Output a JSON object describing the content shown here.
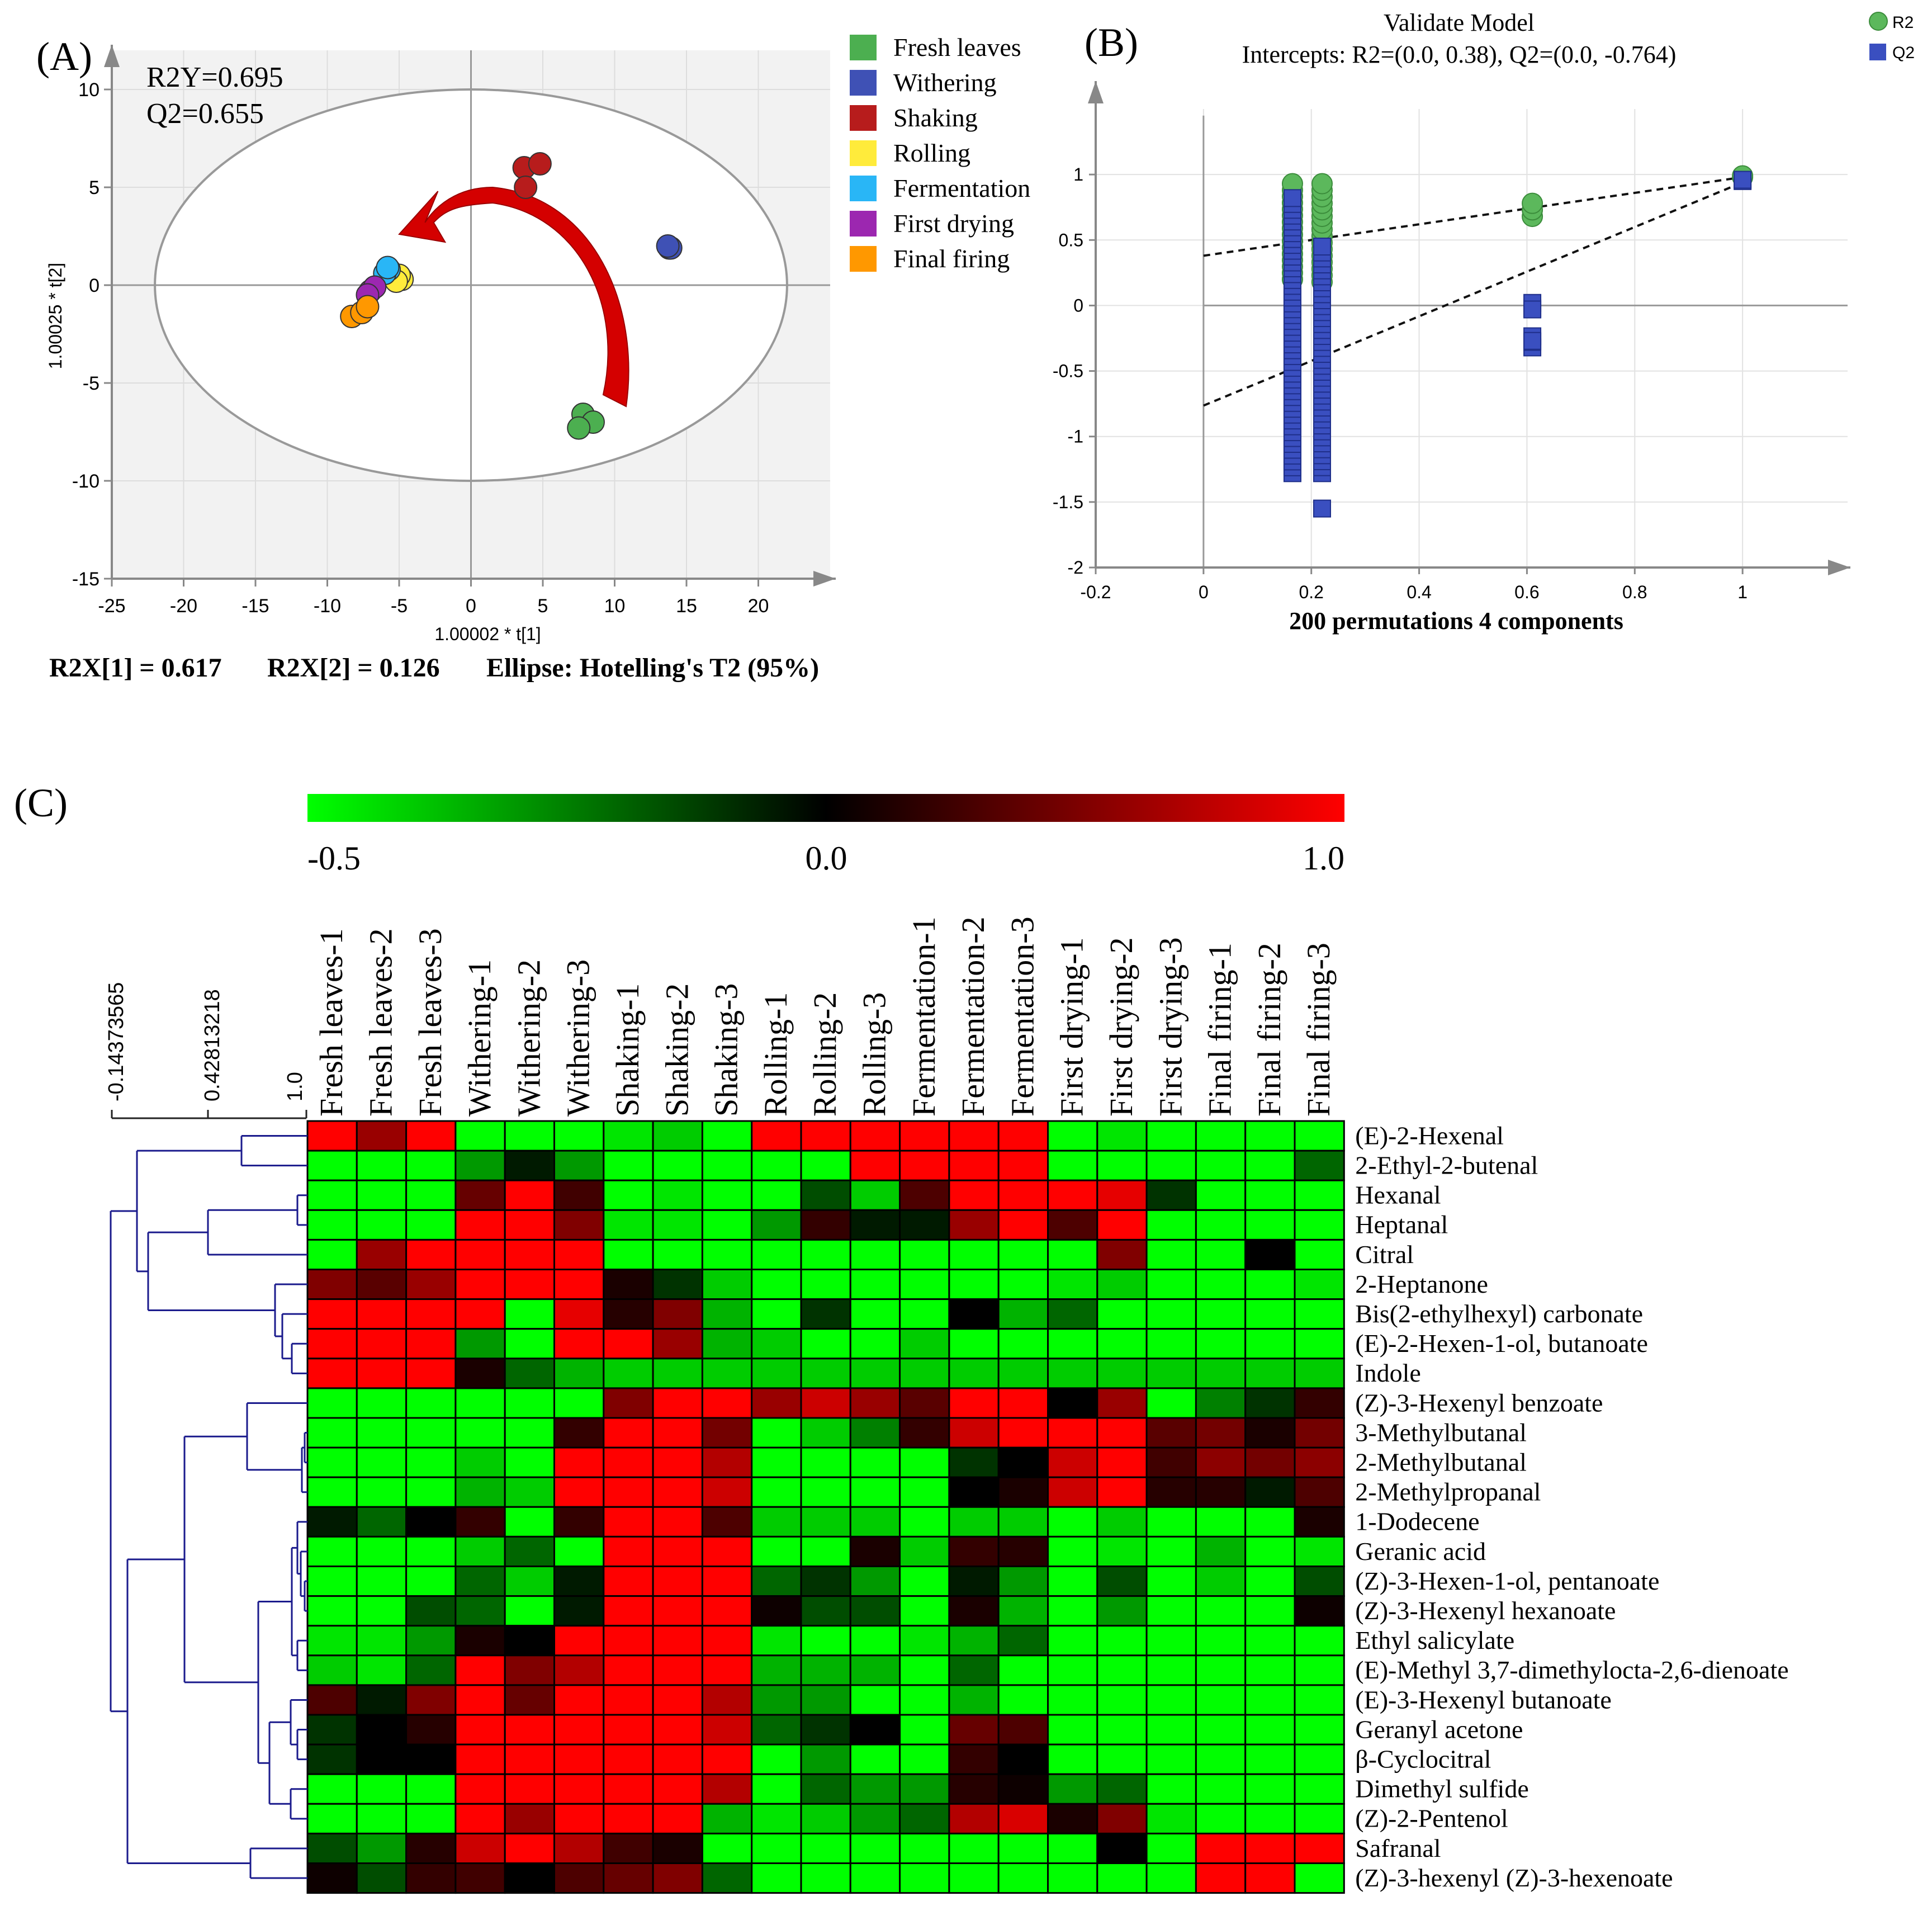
{
  "panel_labels": {
    "a": "(A)",
    "b": "(B)",
    "c": "(C)"
  },
  "colors": {
    "fresh": "#4caf50",
    "withering": "#3f51b5",
    "shaking": "#b71c1c",
    "rolling": "#ffeb3b",
    "fermentation": "#29b6f6",
    "firstdrying": "#9c27b0",
    "finalfiring": "#ff9800",
    "r2": "#5cb85c",
    "q2": "#3a4fc0",
    "arrow": "#d40000",
    "dendro": "#1a1a8c"
  },
  "chart_data": [
    {
      "id": "A",
      "type": "scatter",
      "xlabel": "1.00002 * t[1]",
      "ylabel": "1.00025 * t[2]",
      "xlim": [
        -25,
        25
      ],
      "ylim": [
        -15,
        12
      ],
      "xticks": [
        "-25",
        "-20",
        "-15",
        "-10",
        "-5",
        "0",
        "5",
        "10",
        "15",
        "20"
      ],
      "yticks": [
        "10",
        "5",
        "0",
        "-5",
        "-10",
        "-15"
      ],
      "stats": [
        "R2Y=0.695",
        "Q2=0.655"
      ],
      "footer": [
        "R2X[1] = 0.617",
        "R2X[2] = 0.126",
        "Ellipse: Hotelling's T2 (95%)"
      ],
      "ellipse": {
        "cx": 0,
        "cy": 0,
        "rx": 22,
        "ry": 10
      },
      "series": [
        {
          "name": "Fresh leaves",
          "color": "#4caf50",
          "points": [
            [
              7.8,
              -6.6
            ],
            [
              8.5,
              -7.0
            ],
            [
              7.5,
              -7.3
            ]
          ]
        },
        {
          "name": "Withering",
          "color": "#3f51b5",
          "points": [
            [
              13.8,
              1.9
            ],
            [
              13.9,
              1.9
            ],
            [
              13.7,
              2.0
            ]
          ]
        },
        {
          "name": "Shaking",
          "color": "#b71c1c",
          "points": [
            [
              3.7,
              6.0
            ],
            [
              4.8,
              6.2
            ],
            [
              3.8,
              5.0
            ]
          ]
        },
        {
          "name": "Rolling",
          "color": "#ffeb3b",
          "points": [
            [
              -4.8,
              0.3
            ],
            [
              -5.0,
              0.5
            ],
            [
              -5.2,
              0.2
            ]
          ]
        },
        {
          "name": "Fermentation",
          "color": "#29b6f6",
          "points": [
            [
              -5.7,
              0.8
            ],
            [
              -6.0,
              0.6
            ],
            [
              -5.8,
              0.9
            ]
          ]
        },
        {
          "name": "First drying",
          "color": "#9c27b0",
          "points": [
            [
              -7.0,
              -0.3
            ],
            [
              -6.7,
              -0.1
            ],
            [
              -7.2,
              -0.5
            ]
          ]
        },
        {
          "name": "Final firing",
          "color": "#ff9800",
          "points": [
            [
              -8.3,
              -1.6
            ],
            [
              -7.6,
              -1.4
            ],
            [
              -7.2,
              -1.1
            ]
          ]
        }
      ]
    },
    {
      "id": "B",
      "type": "scatter",
      "title": "Validate Model",
      "subtitle": "Intercepts: R2=(0.0, 0.38), Q2=(0.0, -0.764)",
      "xlabel": "200 permutations 4 components",
      "xlim": [
        -0.2,
        1.2
      ],
      "ylim": [
        -2,
        1.5
      ],
      "xticks": [
        "-0.2",
        "0",
        "0.2",
        "0.4",
        "0.6",
        "0.8",
        "1"
      ],
      "yticks": [
        "1",
        "0.5",
        "0",
        "-0.5",
        "-1",
        "-1.5",
        "-2"
      ],
      "legend": [
        "R2",
        "Q2"
      ],
      "r2_line": [
        [
          0,
          0.38
        ],
        [
          1,
          0.98
        ]
      ],
      "q2_line": [
        [
          0,
          -0.764
        ],
        [
          1,
          0.94
        ]
      ],
      "series": [
        {
          "name": "R2",
          "x": [
            0.165,
            0.22,
            0.61,
            1.0
          ],
          "ranges": [
            [
              0.2,
              0.93
            ],
            [
              0.18,
              0.93
            ],
            [
              0.68,
              0.78
            ],
            [
              0.98,
              0.99
            ]
          ]
        },
        {
          "name": "Q2",
          "x": [
            0.165,
            0.22,
            0.61,
            1.0
          ],
          "ranges": [
            [
              -1.28,
              0.82
            ],
            [
              -1.28,
              0.45
            ],
            [
              -0.32,
              0.02
            ],
            [
              0.95,
              0.96
            ]
          ],
          "outliers": [
            [
              0.22,
              -1.55
            ],
            [
              0.61,
              -0.27
            ],
            [
              0.61,
              -0.03
            ]
          ]
        }
      ]
    },
    {
      "id": "C",
      "type": "heatmap",
      "colorbar": {
        "min": -0.5,
        "mid": 0.0,
        "max": 1.0,
        "labels": [
          "-0.5",
          "0.0",
          "1.0"
        ]
      },
      "dendro_scale": [
        "-0.14373565",
        "0.42813218",
        "1.0"
      ],
      "columns": [
        "Fresh leaves-1",
        "Fresh leaves-2",
        "Fresh leaves-3",
        "Withering-1",
        "Withering-2",
        "Withering-3",
        "Shaking-1",
        "Shaking-2",
        "Shaking-3",
        "Rolling-1",
        "Rolling-2",
        "Rolling-3",
        "Fermentation-1",
        "Fermentation-2",
        "Fermentation-3",
        "First drying-1",
        "First drying-2",
        "First drying-3",
        "Final firing-1",
        "Final firing-2",
        "Final firing-3"
      ],
      "rows": [
        "(E)-2-Hexenal",
        "2-Ethyl-2-butenal",
        "Hexanal",
        "Heptanal",
        "Citral",
        "2-Heptanone",
        "Bis(2-ethylhexyl) carbonate",
        "(E)-2-Hexen-1-ol, butanoate",
        "Indole",
        "(Z)-3-Hexenyl benzoate",
        "3-Methylbutanal",
        "2-Methylbutanal",
        "2-Methylpropanal",
        "1-Dodecene",
        "Geranic acid",
        "(Z)-3-Hexen-1-ol, pentanoate",
        "(Z)-3-Hexenyl hexanoate",
        "Ethyl salicylate",
        "(E)-Methyl 3,7-dimethylocta-2,6-dienoate",
        "(E)-3-Hexenyl butanoate",
        "Geranyl acetone",
        "β-Cyclocitral",
        "Dimethyl sulfide",
        "(Z)-2-Pentenol",
        "Safranal",
        "(Z)-3-hexenyl (Z)-3-hexenoate"
      ],
      "values": [
        [
          1.0,
          0.6,
          1.0,
          -0.5,
          -0.5,
          -0.5,
          -0.45,
          -0.4,
          -0.5,
          1.0,
          1.0,
          1.0,
          1.0,
          1.0,
          1.0,
          -0.5,
          -0.45,
          -0.5,
          -0.5,
          -0.5,
          -0.5
        ],
        [
          -0.5,
          -0.5,
          -0.5,
          -0.3,
          -0.05,
          -0.3,
          -0.5,
          -0.5,
          -0.5,
          -0.5,
          -0.5,
          1.0,
          1.0,
          1.0,
          1.0,
          -0.5,
          -0.5,
          -0.5,
          -0.5,
          -0.5,
          -0.2
        ],
        [
          -0.5,
          -0.5,
          -0.5,
          0.4,
          1.0,
          0.25,
          -0.5,
          -0.45,
          -0.5,
          -0.5,
          -0.15,
          -0.4,
          0.3,
          1.0,
          1.0,
          1.0,
          0.9,
          -0.1,
          -0.5,
          -0.5,
          -0.5
        ],
        [
          -0.5,
          -0.5,
          -0.5,
          1.0,
          1.0,
          0.5,
          -0.45,
          -0.45,
          -0.5,
          -0.3,
          0.2,
          -0.05,
          -0.05,
          0.6,
          1.0,
          0.3,
          1.0,
          -0.5,
          -0.5,
          -0.5,
          -0.5
        ],
        [
          -0.5,
          0.6,
          1.0,
          1.0,
          1.0,
          1.0,
          -0.5,
          -0.5,
          -0.5,
          -0.5,
          -0.5,
          -0.5,
          -0.5,
          -0.5,
          -0.5,
          -0.5,
          0.5,
          -0.5,
          -0.5,
          0.0,
          -0.5
        ],
        [
          0.5,
          0.35,
          0.6,
          1.0,
          1.0,
          1.0,
          0.1,
          -0.1,
          -0.4,
          -0.5,
          -0.5,
          -0.5,
          -0.5,
          -0.5,
          -0.5,
          -0.45,
          -0.4,
          -0.5,
          -0.5,
          -0.5,
          -0.45
        ],
        [
          1.0,
          1.0,
          1.0,
          1.0,
          -0.5,
          0.9,
          0.15,
          0.5,
          -0.35,
          -0.5,
          -0.1,
          -0.5,
          -0.5,
          0.0,
          -0.35,
          -0.2,
          -0.5,
          -0.5,
          -0.5,
          -0.5,
          -0.5
        ],
        [
          1.0,
          1.0,
          1.0,
          -0.3,
          -0.5,
          1.0,
          1.0,
          0.6,
          -0.35,
          -0.4,
          -0.5,
          -0.5,
          -0.4,
          -0.5,
          -0.5,
          -0.5,
          -0.5,
          -0.5,
          -0.5,
          -0.5,
          -0.5
        ],
        [
          1.0,
          1.0,
          1.0,
          0.1,
          -0.2,
          -0.35,
          -0.4,
          -0.4,
          -0.4,
          -0.4,
          -0.4,
          -0.4,
          -0.4,
          -0.4,
          -0.4,
          -0.4,
          -0.4,
          -0.4,
          -0.4,
          -0.4,
          -0.4
        ],
        [
          -0.5,
          -0.5,
          -0.5,
          -0.5,
          -0.5,
          -0.5,
          0.5,
          1.0,
          1.0,
          0.6,
          0.8,
          0.6,
          0.35,
          1.0,
          1.0,
          0.0,
          0.6,
          -0.5,
          -0.25,
          -0.1,
          0.2
        ],
        [
          -0.5,
          -0.5,
          -0.5,
          -0.5,
          -0.5,
          0.2,
          1.0,
          1.0,
          0.45,
          -0.5,
          -0.4,
          -0.25,
          0.2,
          0.8,
          1.0,
          1.0,
          1.0,
          0.35,
          0.45,
          0.1,
          0.45
        ],
        [
          -0.5,
          -0.5,
          -0.5,
          -0.4,
          -0.5,
          1.0,
          1.0,
          1.0,
          0.7,
          -0.5,
          -0.5,
          -0.5,
          -0.5,
          -0.1,
          0.0,
          0.8,
          1.0,
          0.25,
          0.55,
          0.45,
          0.55
        ],
        [
          -0.5,
          -0.5,
          -0.5,
          -0.35,
          -0.4,
          1.0,
          1.0,
          1.0,
          0.8,
          -0.5,
          -0.5,
          -0.5,
          -0.5,
          0.0,
          0.1,
          0.8,
          1.0,
          0.15,
          0.15,
          -0.05,
          0.3
        ],
        [
          -0.05,
          -0.2,
          0.0,
          0.2,
          -0.5,
          0.2,
          1.0,
          1.0,
          0.3,
          -0.4,
          -0.4,
          -0.4,
          -0.5,
          -0.4,
          -0.4,
          -0.5,
          -0.4,
          -0.5,
          -0.5,
          -0.5,
          0.1
        ],
        [
          -0.5,
          -0.5,
          -0.5,
          -0.4,
          -0.2,
          -0.5,
          1.0,
          1.0,
          1.0,
          -0.5,
          -0.5,
          0.1,
          -0.4,
          0.2,
          0.15,
          -0.5,
          -0.45,
          -0.5,
          -0.35,
          -0.5,
          -0.45
        ],
        [
          -0.5,
          -0.5,
          -0.5,
          -0.2,
          -0.4,
          -0.05,
          1.0,
          1.0,
          1.0,
          -0.2,
          -0.1,
          -0.3,
          -0.5,
          -0.05,
          -0.3,
          -0.5,
          -0.15,
          -0.5,
          -0.4,
          -0.5,
          -0.15
        ],
        [
          -0.5,
          -0.5,
          -0.15,
          -0.2,
          -0.5,
          -0.05,
          1.0,
          1.0,
          1.0,
          0.05,
          -0.15,
          -0.15,
          -0.5,
          0.1,
          -0.35,
          -0.5,
          -0.3,
          -0.5,
          -0.5,
          -0.5,
          0.05
        ],
        [
          -0.45,
          -0.45,
          -0.3,
          0.1,
          0.0,
          1.0,
          1.0,
          1.0,
          1.0,
          -0.45,
          -0.5,
          -0.5,
          -0.45,
          -0.35,
          -0.2,
          -0.5,
          -0.5,
          -0.5,
          -0.5,
          -0.5,
          -0.5
        ],
        [
          -0.4,
          -0.45,
          -0.2,
          1.0,
          0.5,
          0.7,
          1.0,
          1.0,
          1.0,
          -0.35,
          -0.35,
          -0.35,
          -0.5,
          -0.2,
          -0.5,
          -0.5,
          -0.5,
          -0.5,
          -0.5,
          -0.5,
          -0.5
        ],
        [
          0.3,
          -0.05,
          0.5,
          1.0,
          0.4,
          1.0,
          1.0,
          1.0,
          0.7,
          -0.3,
          -0.3,
          -0.5,
          -0.5,
          -0.35,
          -0.5,
          -0.5,
          -0.5,
          -0.5,
          -0.5,
          -0.5,
          -0.5
        ],
        [
          -0.1,
          0.0,
          0.15,
          1.0,
          1.0,
          1.0,
          1.0,
          1.0,
          0.8,
          -0.2,
          -0.1,
          0.0,
          -0.5,
          0.4,
          0.3,
          -0.5,
          -0.5,
          -0.5,
          -0.5,
          -0.5,
          -0.5
        ],
        [
          -0.1,
          0.0,
          0.0,
          1.0,
          1.0,
          1.0,
          1.0,
          1.0,
          1.0,
          -0.5,
          -0.3,
          -0.5,
          -0.5,
          0.2,
          0.0,
          -0.5,
          -0.5,
          -0.5,
          -0.5,
          -0.5,
          -0.5
        ],
        [
          -0.5,
          -0.5,
          -0.5,
          1.0,
          1.0,
          1.0,
          1.0,
          1.0,
          0.7,
          -0.5,
          -0.2,
          -0.3,
          -0.3,
          0.15,
          0.05,
          -0.3,
          -0.2,
          -0.5,
          -0.5,
          -0.5,
          -0.5
        ],
        [
          -0.5,
          -0.5,
          -0.5,
          1.0,
          0.6,
          1.0,
          1.0,
          1.0,
          -0.35,
          -0.45,
          -0.4,
          -0.3,
          -0.2,
          0.7,
          0.85,
          0.1,
          0.5,
          -0.45,
          -0.5,
          -0.5,
          -0.5
        ],
        [
          -0.15,
          -0.3,
          0.15,
          0.8,
          1.0,
          0.7,
          0.25,
          0.1,
          -0.5,
          -0.5,
          -0.5,
          -0.5,
          -0.5,
          -0.5,
          -0.5,
          -0.5,
          0.0,
          -0.5,
          1.0,
          1.0,
          1.0
        ],
        [
          0.05,
          -0.15,
          0.2,
          0.25,
          0.0,
          0.3,
          0.4,
          0.5,
          -0.2,
          -0.5,
          -0.5,
          -0.5,
          -0.5,
          -0.5,
          -0.5,
          -0.5,
          -0.5,
          -0.5,
          1.0,
          1.0,
          -0.5
        ]
      ]
    }
  ]
}
